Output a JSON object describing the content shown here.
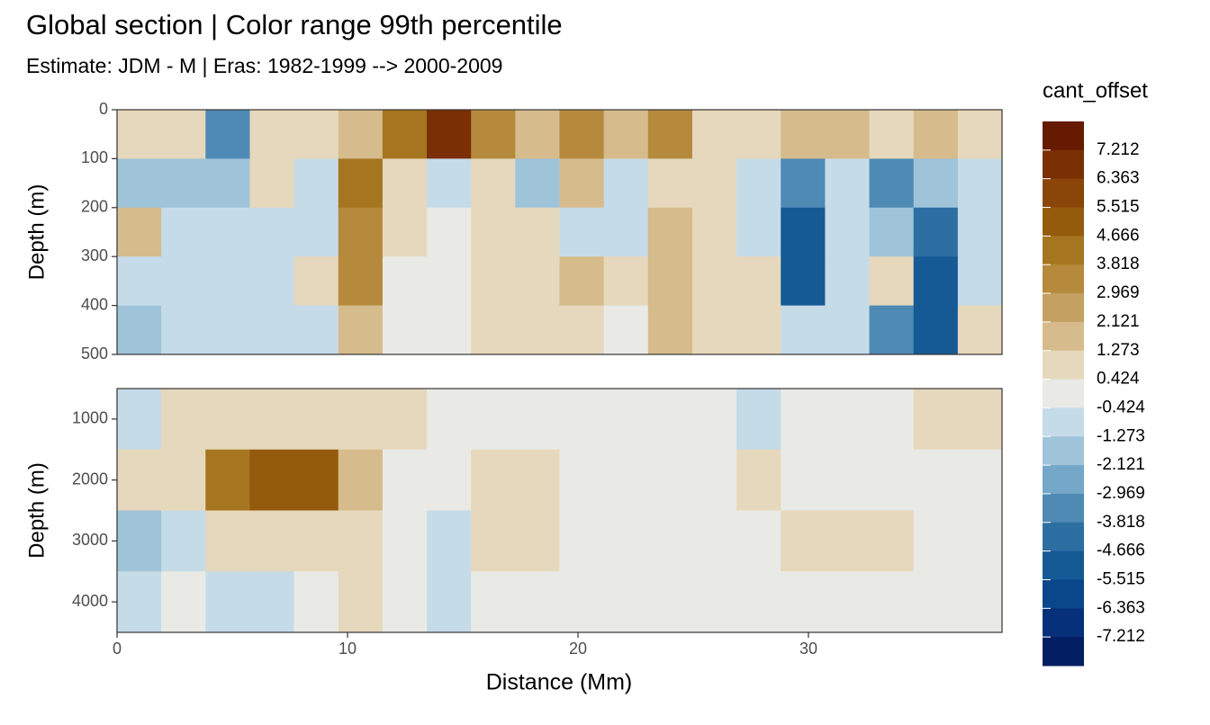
{
  "chart_data": {
    "type": "heatmap",
    "title": "Global section | Color range 99th percentile",
    "subtitle": "Estimate: JDM - M | Eras: 1982-1999 --> 2000-2009",
    "x_label": "Distance (Mm)",
    "y_label": "Depth (m)",
    "legend_title": "cant_offset",
    "reverse_y": true,
    "xlim": [
      0,
      38.4
    ],
    "xticks": [
      0,
      10,
      20,
      30
    ],
    "x_edges": [
      0,
      1.92,
      3.84,
      5.76,
      7.68,
      9.6,
      11.52,
      13.44,
      15.36,
      17.28,
      19.2,
      21.12,
      23.04,
      24.96,
      26.88,
      28.8,
      30.72,
      32.64,
      34.56,
      36.48,
      38.4
    ],
    "panels": [
      {
        "ylim": [
          0,
          500
        ],
        "yticks": [
          0,
          100,
          200,
          300,
          400,
          500
        ],
        "y_edges": [
          0,
          100,
          200,
          300,
          400,
          500
        ],
        "values": [
          [
            1,
            0.5,
            -3,
            1,
            1,
            2,
            4,
            7,
            3,
            2,
            3,
            2,
            3,
            1,
            1,
            2,
            2,
            1,
            2,
            1
          ],
          [
            -2,
            -2,
            -2,
            0.5,
            -1,
            4,
            1,
            -1,
            1,
            -2,
            1.5,
            -1,
            1,
            1,
            -1,
            -3,
            -1,
            -3,
            -2,
            -1
          ],
          [
            2,
            -1,
            -1,
            -0.5,
            -0.5,
            3,
            0.5,
            0,
            0.5,
            0.5,
            -1,
            -1,
            2,
            0.5,
            -1,
            -5,
            -1,
            -2,
            -4,
            -1
          ],
          [
            -1,
            -1,
            -0.5,
            -0.5,
            0.5,
            3,
            0.3,
            0,
            0.5,
            0.5,
            2,
            1,
            2,
            0.5,
            0.5,
            -5,
            -1,
            0.5,
            -5,
            -1
          ],
          [
            -1.5,
            -1,
            -0.5,
            -0.5,
            -0.5,
            2,
            0.3,
            0,
            0.5,
            0.5,
            1,
            0,
            2,
            0.5,
            0.5,
            -1,
            -1,
            -3,
            -5,
            0.5
          ]
        ]
      },
      {
        "ylim": [
          500,
          4500
        ],
        "yticks": [
          1000,
          2000,
          3000,
          4000
        ],
        "y_edges": [
          500,
          1500,
          2500,
          3500,
          4500
        ],
        "values": [
          [
            -1,
            1,
            1,
            1,
            1,
            1,
            0.5,
            0,
            0,
            0,
            0,
            0,
            0,
            0,
            -0.5,
            0,
            0,
            0,
            0.5,
            0.5
          ],
          [
            1,
            1,
            4,
            5,
            5,
            1.5,
            0,
            0,
            0.5,
            0.5,
            0,
            0,
            0,
            0,
            0.5,
            0,
            0,
            0,
            0,
            0
          ],
          [
            -2,
            -1,
            0.5,
            0.5,
            1,
            1,
            0,
            -0.5,
            0.5,
            0.5,
            0,
            0,
            0,
            0,
            0,
            0.5,
            0.5,
            0.5,
            0,
            0
          ],
          [
            -1,
            0,
            -0.5,
            -0.5,
            0,
            0.5,
            0,
            -0.5,
            0.3,
            0,
            0,
            0,
            0,
            0,
            0,
            0,
            0,
            0,
            0,
            0
          ]
        ]
      }
    ],
    "legend": {
      "breaks": [
        7.212,
        6.363,
        5.515,
        4.666,
        3.818,
        2.969,
        2.121,
        1.273,
        0.424,
        -0.424,
        -1.273,
        -2.121,
        -2.969,
        -3.818,
        -4.666,
        -5.515,
        -6.363,
        -7.212
      ],
      "colors": [
        "#661a00",
        "#7a2f04",
        "#8a4508",
        "#955b0c",
        "#a5761f",
        "#b58a3d",
        "#c4a062",
        "#d6bb8c",
        "#e6d8bc",
        "#e9eae6",
        "#c6dbe8",
        "#9fc4da",
        "#74a7c8",
        "#4f8ab5",
        "#2e6fa3",
        "#155a95",
        "#0a468a",
        "#06317a",
        "#031e63"
      ]
    }
  }
}
